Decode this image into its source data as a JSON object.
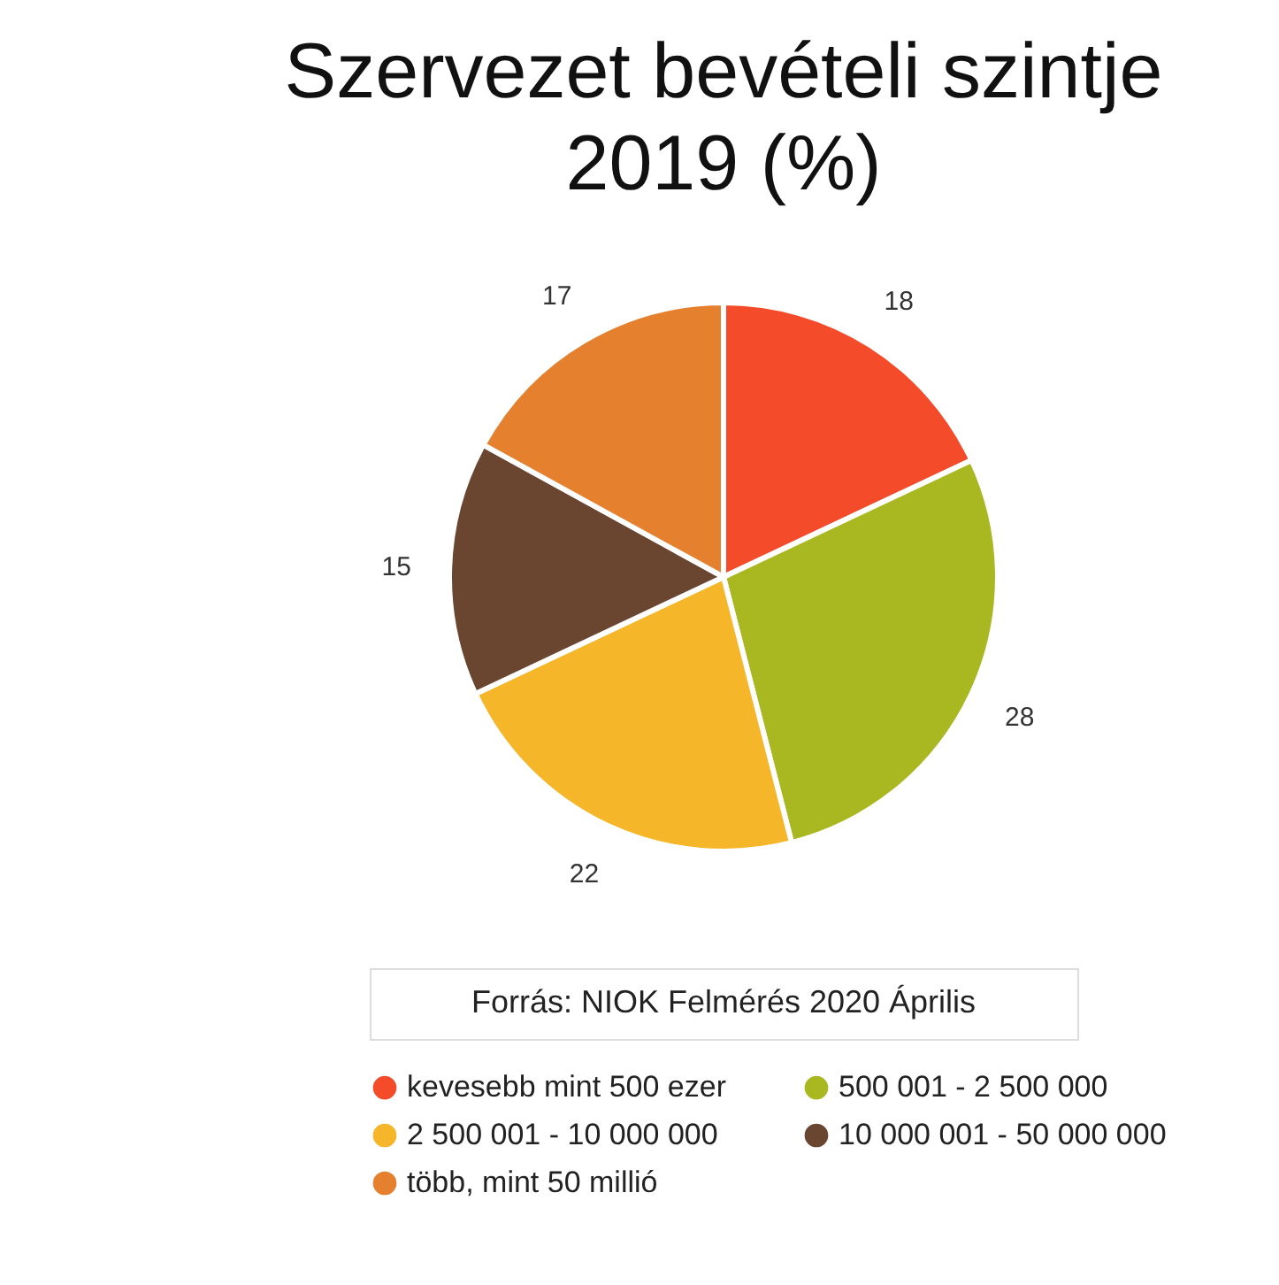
{
  "chart_data": {
    "type": "pie",
    "title": "Szervezet bevételi szintje 2019 (%)",
    "categories": [
      "kevesebb mint 500 ezer",
      "500 001 - 2 500 000",
      "2 500 001 - 10 000 000",
      "10 000 001 - 50 000 000",
      "több, mint 50 millió"
    ],
    "values": [
      18,
      28,
      22,
      15,
      17
    ],
    "colors": [
      "#f44b2a",
      "#a9b820",
      "#f5b62a",
      "#6a4631",
      "#e5802f"
    ],
    "data_labels": true,
    "legend": "bottom",
    "annotations": [
      "Forrás: NIOK Felmérés 2020 Április"
    ]
  }
}
